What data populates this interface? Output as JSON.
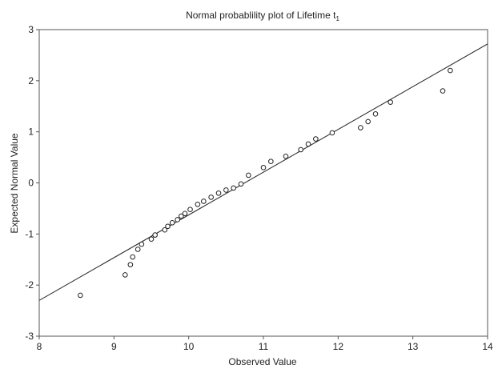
{
  "chart_data": {
    "type": "scatter",
    "title": "Normal probablility plot of  Lifetime t",
    "title_subscript": "1",
    "xlabel": "Observed Value",
    "ylabel": "Expected Normal Value",
    "xlim": [
      8,
      14
    ],
    "ylim": [
      -3,
      3
    ],
    "xticks": [
      "8",
      "9",
      "10",
      "11",
      "12",
      "13",
      "14"
    ],
    "yticks": [
      "3",
      "2",
      "1",
      "0",
      "-1",
      "-2",
      "-3"
    ],
    "grid": true,
    "points": {
      "x": [
        8.55,
        9.15,
        9.22,
        9.25,
        9.32,
        9.37,
        9.5,
        9.55,
        9.68,
        9.72,
        9.78,
        9.85,
        9.9,
        9.95,
        10.02,
        10.12,
        10.2,
        10.3,
        10.4,
        10.5,
        10.6,
        10.7,
        10.8,
        11.0,
        11.1,
        11.3,
        11.5,
        11.6,
        11.7,
        11.92,
        12.3,
        12.4,
        12.5,
        12.7,
        13.4,
        13.5
      ],
      "y": [
        -2.2,
        -1.8,
        -1.6,
        -1.45,
        -1.3,
        -1.2,
        -1.1,
        -1.02,
        -0.92,
        -0.85,
        -0.78,
        -0.72,
        -0.65,
        -0.6,
        -0.52,
        -0.42,
        -0.36,
        -0.28,
        -0.2,
        -0.14,
        -0.1,
        -0.02,
        0.15,
        0.3,
        0.42,
        0.52,
        0.65,
        0.76,
        0.86,
        0.98,
        1.08,
        1.2,
        1.35,
        1.58,
        1.8,
        2.2
      ]
    },
    "fit_line": {
      "x": [
        8,
        14
      ],
      "y": [
        -2.3,
        2.72
      ]
    },
    "colors": {
      "grid": "#d4d4d4",
      "frame": "#555555",
      "points": "#222222",
      "line": "#333333"
    }
  }
}
